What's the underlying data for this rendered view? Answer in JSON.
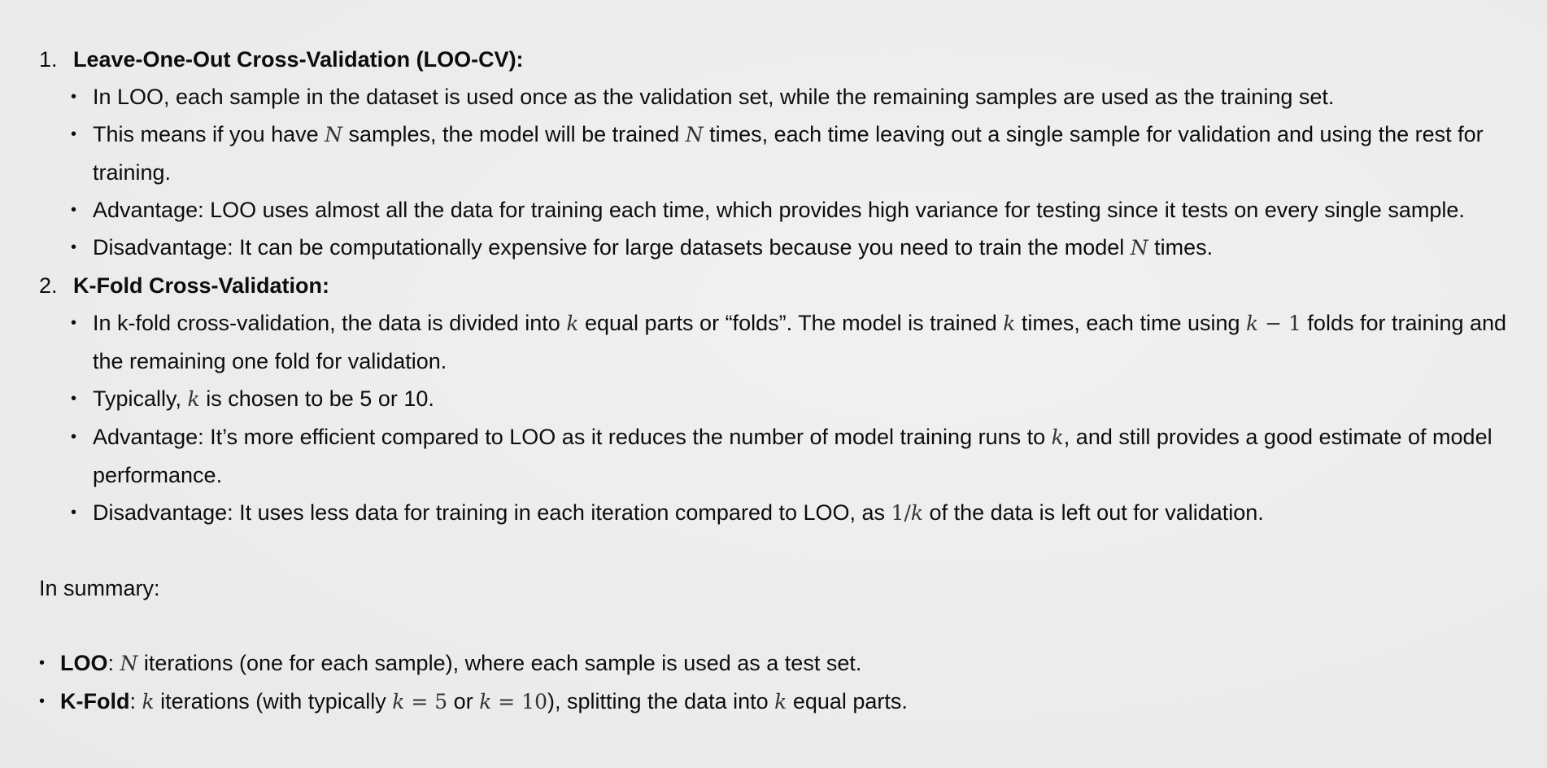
{
  "sections": [
    {
      "number": "1.",
      "title": "Leave-One-Out Cross-Validation (LOO-CV):",
      "bullets": [
        {
          "text": "In LOO, each sample in the dataset is used once as the validation set, while the remaining samples are used as the training set."
        },
        {
          "parts": [
            "This means if you have ",
            "N",
            " samples, the model will be trained ",
            "N",
            " times, each time leaving out a single sample for validation and using the rest for training."
          ]
        },
        {
          "text": "Advantage: LOO uses almost all the data for training each time, which provides high variance for testing since it tests on every single sample."
        },
        {
          "parts": [
            "Disadvantage: It can be computationally expensive for large datasets because you need to train the model ",
            "N",
            " times."
          ]
        }
      ]
    },
    {
      "number": "2.",
      "title": "K-Fold Cross-Validation:",
      "bullets": [
        {
          "parts": [
            "In k-fold cross-validation, the data is divided into ",
            "k",
            " equal parts or “folds”. The model is trained ",
            "k",
            " times, each time using ",
            "k",
            " − 1",
            " folds for training and the remaining one fold for validation."
          ]
        },
        {
          "parts": [
            "Typically, ",
            "k",
            " is chosen to be 5 or 10."
          ]
        },
        {
          "parts": [
            "Advantage: It’s more efficient compared to LOO as it reduces the number of model training runs to ",
            "k",
            ", and still provides a good estimate of model performance."
          ]
        },
        {
          "parts": [
            "Disadvantage: It uses less data for training in each iteration compared to LOO, as ",
            "1/",
            "k",
            " of the data is left out for validation."
          ]
        }
      ]
    }
  ],
  "summary": {
    "intro": "In summary:",
    "items": [
      {
        "label": "LOO",
        "parts": [
          ": ",
          "N",
          " iterations (one for each sample), where each sample is used as a test set."
        ]
      },
      {
        "label": "K-Fold",
        "parts": [
          ": ",
          "k",
          " iterations (with typically ",
          "k",
          " = 5",
          " or ",
          "k",
          " = 10",
          "), splitting the data into ",
          "k",
          " equal parts."
        ]
      }
    ]
  }
}
